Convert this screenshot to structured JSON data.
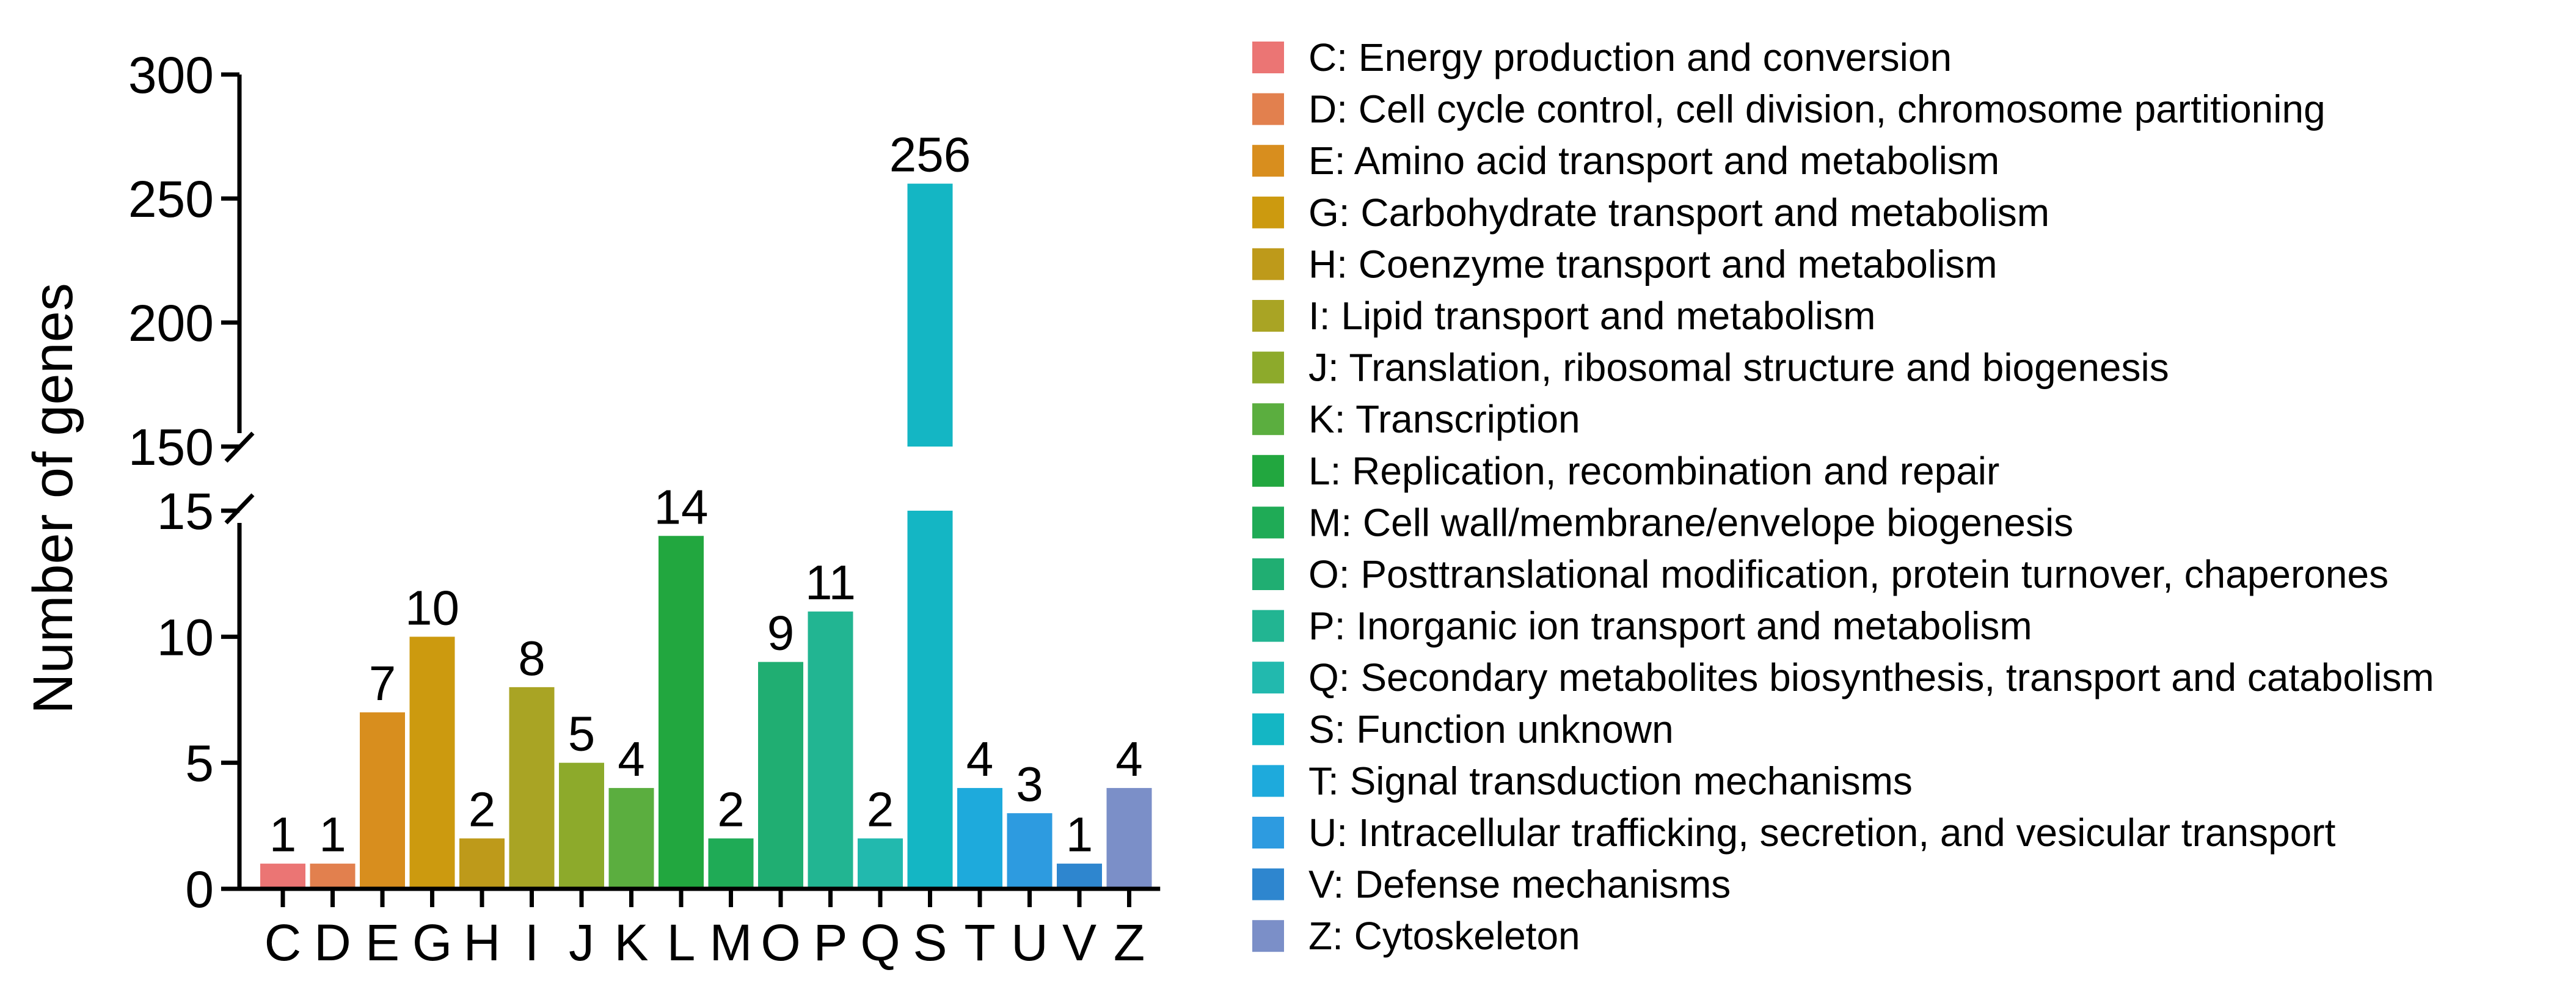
{
  "chart_data": {
    "type": "bar",
    "title": "",
    "xlabel": "",
    "ylabel": "Number of genes",
    "y_axis_break": {
      "lower_range": [
        0,
        15
      ],
      "upper_range": [
        150,
        300
      ]
    },
    "lower_ticks": [
      0,
      5,
      10,
      15
    ],
    "upper_ticks": [
      150,
      200,
      250,
      300
    ],
    "grid": false,
    "legend_position": "right",
    "categories": [
      "C",
      "D",
      "E",
      "G",
      "H",
      "I",
      "J",
      "K",
      "L",
      "M",
      "O",
      "P",
      "Q",
      "S",
      "T",
      "U",
      "V",
      "Z"
    ],
    "values": [
      1,
      1,
      7,
      10,
      2,
      8,
      5,
      4,
      14,
      2,
      9,
      11,
      2,
      256,
      4,
      3,
      1,
      4
    ],
    "data_labels": [
      "1",
      "1",
      "7",
      "10",
      "2",
      "8",
      "5",
      "4",
      "14",
      "2",
      "9",
      "11",
      "2",
      "256",
      "4",
      "3",
      "1",
      "4"
    ],
    "colors": [
      "#EB7574",
      "#E2804E",
      "#D88E1E",
      "#CC9A0F",
      "#BE9A1A",
      "#A9A424",
      "#8DAA2B",
      "#5BAE3F",
      "#22A73F",
      "#1FAB56",
      "#20AE72",
      "#22B592",
      "#22B9AE",
      "#14B6C4",
      "#1EAADC",
      "#2D9BE0",
      "#2E86CF",
      "#7B8FC8"
    ],
    "legend": [
      "C: Energy production and conversion",
      "D: Cell cycle control, cell division, chromosome partitioning",
      "E: Amino acid transport and metabolism",
      "G: Carbohydrate transport and metabolism",
      "H: Coenzyme transport and metabolism",
      "I: Lipid transport and metabolism",
      "J: Translation, ribosomal structure and biogenesis",
      "K: Transcription",
      "L: Replication, recombination and repair",
      "M: Cell wall/membrane/envelope biogenesis",
      "O: Posttranslational modification, protein turnover, chaperones",
      "P: Inorganic ion transport and metabolism",
      "Q: Secondary metabolites biosynthesis, transport and catabolism",
      "S: Function unknown",
      "T: Signal transduction mechanisms",
      "U: Intracellular trafficking, secretion, and vesicular transport",
      "V: Defense mechanisms",
      "Z: Cytoskeleton"
    ]
  }
}
